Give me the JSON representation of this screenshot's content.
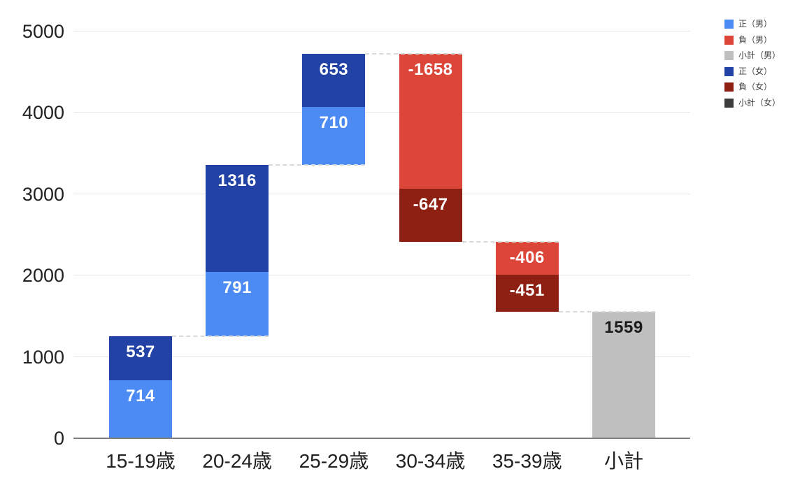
{
  "chart_data": {
    "type": "bar",
    "subtype": "waterfall-stacked",
    "title": "",
    "xlabel": "",
    "ylabel": "",
    "categories": [
      "15-19歳",
      "20-24歳",
      "25-29歳",
      "30-34歳",
      "35-39歳",
      "小計"
    ],
    "y_axis": {
      "min": 0,
      "max": 5000,
      "tick_step": 1000,
      "tick_labels": [
        "0",
        "1000",
        "2000",
        "3000",
        "4000",
        "5000"
      ]
    },
    "grid": "horizontal",
    "legend_position": "top-right",
    "legend": [
      {
        "label": "正（男）",
        "color": "#4c8bf4"
      },
      {
        "label": "負（男）",
        "color": "#db4639"
      },
      {
        "label": "小計（男）",
        "color": "#bfbfbf"
      },
      {
        "label": "正（女）",
        "color": "#2243a5"
      },
      {
        "label": "負（女）",
        "color": "#8e1f13"
      },
      {
        "label": "小計（女）",
        "color": "#3c3c3c"
      }
    ],
    "bars": [
      {
        "category": "15-19歳",
        "base": 0,
        "segments": [
          {
            "series": "正（男）",
            "value": 714,
            "label": "714",
            "color": "#4c8bf4",
            "label_color": "#ffffff"
          },
          {
            "series": "正（女）",
            "value": 537,
            "label": "537",
            "color": "#2243a5",
            "label_color": "#ffffff"
          }
        ]
      },
      {
        "category": "20-24歳",
        "base": 1251,
        "segments": [
          {
            "series": "正（男）",
            "value": 791,
            "label": "791",
            "color": "#4c8bf4",
            "label_color": "#ffffff"
          },
          {
            "series": "正（女）",
            "value": 1316,
            "label": "1316",
            "color": "#2243a5",
            "label_color": "#ffffff"
          }
        ]
      },
      {
        "category": "25-29歳",
        "base": 3358,
        "segments": [
          {
            "series": "正（男）",
            "value": 710,
            "label": "710",
            "color": "#4c8bf4",
            "label_color": "#ffffff"
          },
          {
            "series": "正（女）",
            "value": 653,
            "label": "653",
            "color": "#2243a5",
            "label_color": "#ffffff"
          }
        ]
      },
      {
        "category": "30-34歳",
        "base": 2416,
        "segments": [
          {
            "series": "負（女）",
            "value": 647,
            "label": "-647",
            "color": "#8e1f13",
            "label_color": "#ffffff"
          },
          {
            "series": "負（男）",
            "value": 1658,
            "label": "-1658",
            "color": "#db4639",
            "label_color": "#ffffff"
          }
        ]
      },
      {
        "category": "35-39歳",
        "base": 1559,
        "segments": [
          {
            "series": "負（女）",
            "value": 451,
            "label": "-451",
            "color": "#8e1f13",
            "label_color": "#ffffff"
          },
          {
            "series": "負（男）",
            "value": 406,
            "label": "-406",
            "color": "#db4639",
            "label_color": "#ffffff"
          }
        ]
      },
      {
        "category": "小計",
        "base": 0,
        "segments": [
          {
            "series": "小計（男）",
            "value": 1559,
            "label": "1559",
            "color": "#bfbfbf",
            "label_color": "#1a1a1a"
          }
        ]
      }
    ],
    "connectors": [
      {
        "level": 1251,
        "from": 0,
        "to": 1
      },
      {
        "level": 3358,
        "from": 1,
        "to": 2
      },
      {
        "level": 4721,
        "from": 2,
        "to": 3
      },
      {
        "level": 2416,
        "from": 3,
        "to": 4
      },
      {
        "level": 1559,
        "from": 4,
        "to": 5
      }
    ]
  }
}
